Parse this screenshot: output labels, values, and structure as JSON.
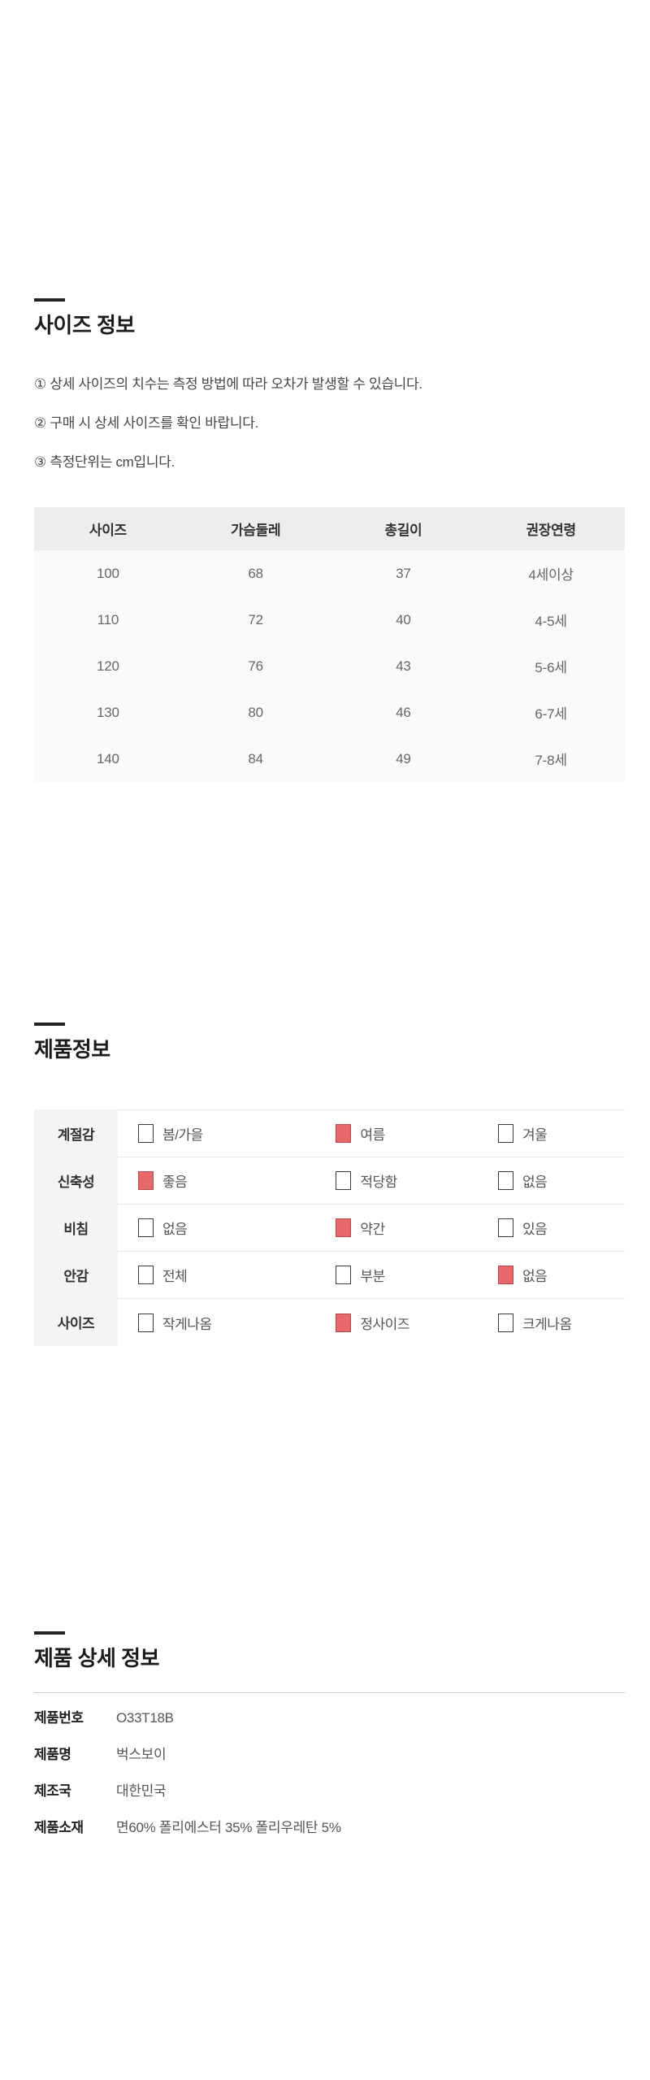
{
  "colors": {
    "accent_checked": "#e8696b",
    "header_bg": "#ededed",
    "label_col_bg": "#f4f4f4"
  },
  "size_info": {
    "title": "사이즈 정보",
    "notes": [
      "① 상세 사이즈의 치수는 측정 방법에 따라 오차가 발생할 수 있습니다.",
      "② 구매 시 상세 사이즈를 확인 바랍니다.",
      "③ 측정단위는 cm입니다."
    ],
    "table": {
      "headers": [
        "사이즈",
        "가슴둘레",
        "총길이",
        "권장연령"
      ],
      "rows": [
        [
          "100",
          "68",
          "37",
          "4세이상"
        ],
        [
          "110",
          "72",
          "40",
          "4-5세"
        ],
        [
          "120",
          "76",
          "43",
          "5-6세"
        ],
        [
          "130",
          "80",
          "46",
          "6-7세"
        ],
        [
          "140",
          "84",
          "49",
          "7-8세"
        ]
      ]
    }
  },
  "product_info": {
    "title": "제품정보",
    "rows": [
      {
        "label": "계절감",
        "options": [
          {
            "text": "봄/가을",
            "checked": false
          },
          {
            "text": "여름",
            "checked": true
          },
          {
            "text": "겨울",
            "checked": false
          }
        ]
      },
      {
        "label": "신축성",
        "options": [
          {
            "text": "좋음",
            "checked": true
          },
          {
            "text": "적당함",
            "checked": false
          },
          {
            "text": "없음",
            "checked": false
          }
        ]
      },
      {
        "label": "비침",
        "options": [
          {
            "text": "없음",
            "checked": false
          },
          {
            "text": "약간",
            "checked": true
          },
          {
            "text": "있음",
            "checked": false
          }
        ]
      },
      {
        "label": "안감",
        "options": [
          {
            "text": "전체",
            "checked": false
          },
          {
            "text": "부분",
            "checked": false
          },
          {
            "text": "없음",
            "checked": true
          }
        ]
      },
      {
        "label": "사이즈",
        "options": [
          {
            "text": "작게나옴",
            "checked": false
          },
          {
            "text": "정사이즈",
            "checked": true
          },
          {
            "text": "크게나옴",
            "checked": false
          }
        ]
      }
    ]
  },
  "product_detail": {
    "title": "제품 상세 정보",
    "rows": [
      {
        "label": "제품번호",
        "value": "O33T18B"
      },
      {
        "label": "제품명",
        "value": "벅스보이"
      },
      {
        "label": "제조국",
        "value": "대한민국"
      },
      {
        "label": "제품소재",
        "value": "면60%  폴리에스터 35%  폴리우레탄 5%"
      }
    ]
  }
}
